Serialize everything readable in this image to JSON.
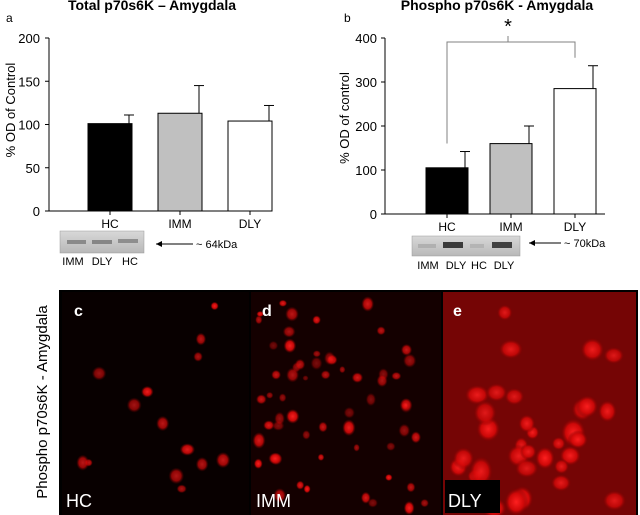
{
  "chart_data": [
    {
      "panel": "a",
      "type": "bar",
      "title": "Total p70s6K – Amygdala",
      "ylabel": "% OD of Control",
      "categories": [
        "HC",
        "IMM",
        "DLY"
      ],
      "values": [
        101,
        113,
        104
      ],
      "errors": [
        10,
        32,
        18
      ],
      "bar_colors": [
        "#000000",
        "#c0c0c0",
        "#ffffff"
      ],
      "ylim": [
        0,
        200
      ],
      "yticks": [
        "0",
        "50",
        "100",
        "150",
        "200"
      ],
      "grid": false,
      "blot": {
        "lanes": [
          "IMM",
          "DLY",
          "HC"
        ],
        "marker": "~ 64kDa"
      }
    },
    {
      "panel": "b",
      "type": "bar",
      "title": "Phospho p70s6K - Amygdala",
      "ylabel": "% OD of control",
      "categories": [
        "HC",
        "IMM",
        "DLY"
      ],
      "values": [
        105,
        160,
        285
      ],
      "errors": [
        37,
        40,
        52
      ],
      "bar_colors": [
        "#000000",
        "#c0c0c0",
        "#ffffff"
      ],
      "ylim": [
        0,
        400
      ],
      "yticks": [
        "0",
        "100",
        "200",
        "300",
        "400"
      ],
      "grid": false,
      "significance": "*",
      "blot": {
        "lanes": [
          "IMM",
          "DLY",
          "HC",
          "DLY"
        ],
        "marker": "~ 70kDa"
      }
    }
  ],
  "micrographs": {
    "side_label": "Phospho p70s6K - Amygdala",
    "panels": [
      {
        "letter": "c",
        "condition": "HC"
      },
      {
        "letter": "d",
        "condition": "IMM"
      },
      {
        "letter": "e",
        "condition": "DLY"
      }
    ],
    "stain_color": "#e01010"
  }
}
